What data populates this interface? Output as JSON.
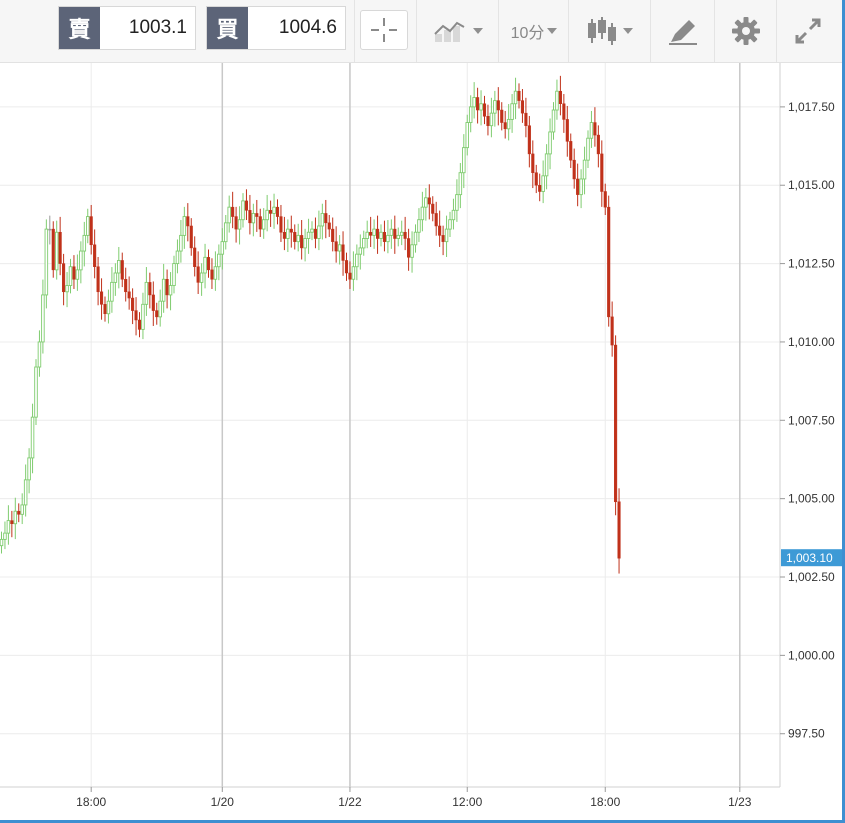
{
  "toolbar": {
    "sell_label": "賣",
    "sell_price": "1003.1",
    "buy_label": "買",
    "buy_price": "1004.6",
    "interval_label": "10分",
    "icons": [
      "crosshair-icon",
      "compare-icon",
      "candlestick-icon",
      "draw-icon",
      "gear-icon",
      "fullscreen-icon"
    ]
  },
  "colors": {
    "up": "#7fcc6f",
    "down": "#c0311a",
    "neutral": "#999999",
    "grid": "#ececec",
    "session_line": "#c8c8c8",
    "price_tag": "#3d9ad6",
    "accent": "#3d8fd1"
  },
  "chart_data": {
    "type": "candlestick",
    "title": "",
    "xlabel": "",
    "ylabel": "",
    "ylim": [
      995.8,
      1018.9
    ],
    "grid": true,
    "y_ticks": [
      "997.50",
      "1,000.00",
      "1,002.50",
      "1,005.00",
      "1,007.50",
      "1,010.00",
      "1,012.50",
      "1,015.00",
      "1,017.50"
    ],
    "y_tick_values": [
      997.5,
      1000,
      1002.5,
      1005,
      1007.5,
      1010,
      1012.5,
      1015,
      1017.5
    ],
    "x_ticks": [
      "18:00",
      "1/20",
      "1/22",
      "12:00",
      "18:00",
      "1/23"
    ],
    "x_tick_index": [
      26,
      64,
      101,
      135,
      175,
      214
    ],
    "session_breaks": [
      64,
      101,
      214
    ],
    "last_price": 1003.1,
    "last_price_label": "1,003.10",
    "closes": [
      1003.7,
      1003.9,
      1004.3,
      1004.2,
      1004.6,
      1004.5,
      1004.8,
      1005.6,
      1006.3,
      1007.6,
      1009.2,
      1010.0,
      1011.5,
      1013.6,
      1013.6,
      1012.3,
      1013.5,
      1012.5,
      1011.6,
      1011.8,
      1012.4,
      1012.0,
      1012.3,
      1012.9,
      1013.4,
      1014.0,
      1013.1,
      1012.4,
      1011.6,
      1011.2,
      1010.9,
      1011.3,
      1011.9,
      1012.2,
      1012.6,
      1012.0,
      1011.6,
      1011.4,
      1011.0,
      1010.7,
      1010.4,
      1011.2,
      1011.9,
      1011.5,
      1011.0,
      1010.8,
      1011.3,
      1012.0,
      1011.5,
      1011.8,
      1012.5,
      1012.9,
      1013.4,
      1014.0,
      1013.7,
      1013.0,
      1012.4,
      1011.9,
      1012.2,
      1012.7,
      1012.3,
      1012.0,
      1012.4,
      1012.8,
      1013.2,
      1013.8,
      1014.3,
      1014.0,
      1013.6,
      1013.9,
      1014.5,
      1014.2,
      1013.8,
      1014.1,
      1014.0,
      1013.6,
      1013.9,
      1014.2,
      1014.1,
      1014.3,
      1014.0,
      1013.5,
      1013.3,
      1013.6,
      1013.5,
      1013.2,
      1013.4,
      1013.0,
      1013.3,
      1013.5,
      1013.6,
      1013.3,
      1013.7,
      1014.1,
      1013.8,
      1013.6,
      1013.2,
      1012.9,
      1013.1,
      1012.6,
      1012.2,
      1012.0,
      1012.4,
      1012.8,
      1013.0,
      1013.3,
      1013.5,
      1013.4,
      1013.6,
      1013.3,
      1013.5,
      1013.2,
      1013.4,
      1013.6,
      1013.3,
      1013.4,
      1013.5,
      1013.3,
      1012.7,
      1013.1,
      1013.5,
      1013.9,
      1014.3,
      1014.6,
      1014.4,
      1014.1,
      1013.7,
      1013.4,
      1013.2,
      1013.6,
      1013.9,
      1014.2,
      1014.7,
      1015.4,
      1016.2,
      1017.0,
      1017.5,
      1017.8,
      1017.4,
      1017.6,
      1017.2,
      1016.9,
      1017.3,
      1017.7,
      1017.4,
      1017.0,
      1016.8,
      1017.1,
      1017.6,
      1018.0,
      1017.7,
      1017.3,
      1016.9,
      1016.0,
      1015.4,
      1015.0,
      1014.8,
      1015.3,
      1016.0,
      1016.7,
      1017.4,
      1018.0,
      1017.6,
      1017.1,
      1016.4,
      1015.8,
      1015.2,
      1014.7,
      1015.2,
      1015.8,
      1016.5,
      1017.0,
      1016.6,
      1016.0,
      1014.8,
      1014.3,
      1010.8,
      1009.9,
      1004.9,
      1003.1
    ]
  }
}
